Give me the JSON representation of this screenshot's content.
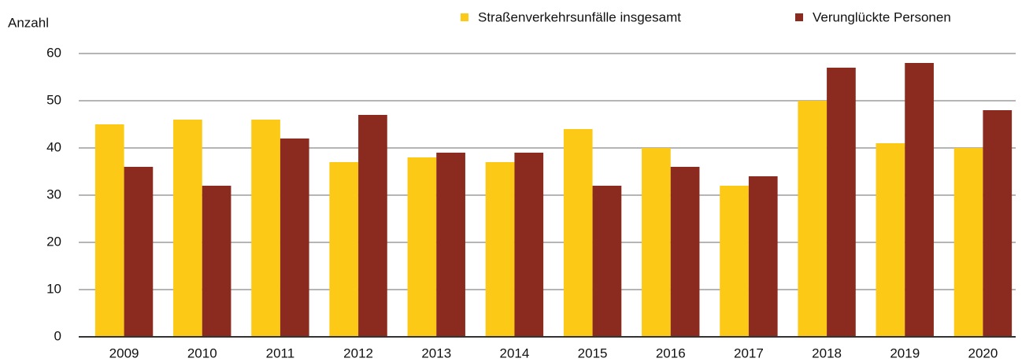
{
  "chart_data": {
    "type": "bar",
    "y_label": "Anzahl",
    "categories": [
      "2009",
      "2010",
      "2011",
      "2012",
      "2013",
      "2014",
      "2015",
      "2016",
      "2017",
      "2018",
      "2019",
      "2020"
    ],
    "series": [
      {
        "name": "Straßenverkehrsunfälle insgesamt",
        "color": "#fcc917",
        "values": [
          45,
          46,
          46,
          37,
          38,
          37,
          44,
          40,
          32,
          50,
          41,
          40
        ]
      },
      {
        "name": "Verunglückte Personen",
        "color": "#8b2a1e",
        "values": [
          36,
          32,
          42,
          47,
          39,
          39,
          32,
          36,
          34,
          57,
          58,
          48
        ]
      }
    ],
    "ylim": [
      0,
      60
    ],
    "yticks": [
      0,
      10,
      20,
      30,
      40,
      50,
      60
    ],
    "grid": true,
    "legend": "top"
  }
}
